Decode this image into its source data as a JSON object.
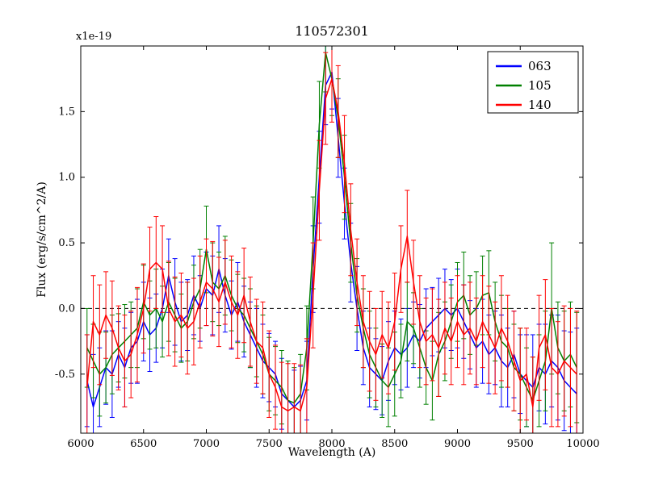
{
  "figure": {
    "title": "110572301",
    "offset_label": "x1e-19",
    "xlabel": "Wavelength (A)",
    "ylabel": "Flux (erg/s/cm^2/A)"
  },
  "chart_data": {
    "type": "line",
    "title": "110572301",
    "xlabel": "Wavelength (A)",
    "ylabel": "Flux (erg/s/cm^2/A)",
    "y_offset_label": "x1e-19",
    "xlim": [
      6000,
      10000
    ],
    "ylim": [
      -0.95,
      2.0
    ],
    "xticks": [
      6000,
      6500,
      7000,
      7500,
      8000,
      8500,
      9000,
      9500,
      10000
    ],
    "xtick_labels": [
      "6000",
      "6500",
      "7000",
      "7500",
      "8000",
      "8500",
      "9000",
      "9500",
      "10000"
    ],
    "yticks": [
      -0.5,
      0.0,
      0.5,
      1.0,
      1.5
    ],
    "ytick_labels": [
      "-0.5",
      "0.0",
      "0.5",
      "1.0",
      "1.5"
    ],
    "grid": false,
    "zero_line": {
      "y": 0.0,
      "style": "dashed",
      "color": "#000000"
    },
    "legend": {
      "position": "upper right",
      "entries": [
        {
          "label": "063",
          "color": "#0000ff"
        },
        {
          "label": "105",
          "color": "#008000"
        },
        {
          "label": "140",
          "color": "#ff0000"
        }
      ]
    },
    "x": [
      6050,
      6100,
      6150,
      6200,
      6250,
      6300,
      6350,
      6400,
      6450,
      6500,
      6550,
      6600,
      6650,
      6700,
      6750,
      6800,
      6850,
      6900,
      6950,
      7000,
      7050,
      7100,
      7150,
      7200,
      7250,
      7300,
      7350,
      7400,
      7450,
      7500,
      7550,
      7600,
      7650,
      7700,
      7750,
      7800,
      7850,
      7900,
      7950,
      8000,
      8050,
      8100,
      8150,
      8200,
      8250,
      8300,
      8350,
      8400,
      8450,
      8500,
      8550,
      8600,
      8650,
      8700,
      8750,
      8800,
      8850,
      8900,
      8950,
      9000,
      9050,
      9100,
      9150,
      9200,
      9250,
      9300,
      9350,
      9400,
      9450,
      9500,
      9550,
      9600,
      9650,
      9700,
      9750,
      9800,
      9850,
      9900,
      9950
    ],
    "series": [
      {
        "name": "063",
        "color": "#0000ff",
        "values": [
          -0.55,
          -0.75,
          -0.6,
          -0.45,
          -0.5,
          -0.35,
          -0.45,
          -0.3,
          -0.25,
          -0.1,
          -0.2,
          -0.15,
          0.0,
          0.25,
          0.05,
          -0.1,
          -0.05,
          0.1,
          0.0,
          0.15,
          0.1,
          0.3,
          0.1,
          -0.05,
          0.05,
          -0.1,
          -0.2,
          -0.3,
          -0.4,
          -0.45,
          -0.5,
          -0.65,
          -0.7,
          -0.75,
          -0.7,
          -0.55,
          0.3,
          1.0,
          1.7,
          1.8,
          1.3,
          0.8,
          0.35,
          0.0,
          -0.3,
          -0.45,
          -0.5,
          -0.55,
          -0.4,
          -0.3,
          -0.35,
          -0.3,
          -0.2,
          -0.25,
          -0.15,
          -0.1,
          -0.05,
          0.0,
          -0.05,
          0.0,
          -0.1,
          -0.2,
          -0.3,
          -0.25,
          -0.35,
          -0.3,
          -0.4,
          -0.45,
          -0.35,
          -0.5,
          -0.55,
          -0.6,
          -0.45,
          -0.5,
          -0.4,
          -0.45,
          -0.55,
          -0.6,
          -0.65
        ],
        "errors": [
          0.35,
          0.4,
          0.3,
          0.28,
          0.33,
          0.25,
          0.3,
          0.27,
          0.32,
          0.3,
          0.28,
          0.26,
          0.3,
          0.28,
          0.33,
          0.3,
          0.27,
          0.3,
          0.25,
          0.28,
          0.3,
          0.33,
          0.28,
          0.26,
          0.3,
          0.27,
          0.25,
          0.3,
          0.28,
          0.26,
          0.25,
          0.27,
          0.3,
          0.28,
          0.26,
          0.3,
          0.33,
          0.35,
          0.3,
          0.28,
          0.3,
          0.27,
          0.3,
          0.32,
          0.28,
          0.3,
          0.27,
          0.26,
          0.3,
          0.28,
          0.27,
          0.3,
          0.25,
          0.28,
          0.3,
          0.26,
          0.28,
          0.3,
          0.27,
          0.3,
          0.28,
          0.26,
          0.3,
          0.32,
          0.3,
          0.28,
          0.35,
          0.3,
          0.33,
          0.3,
          0.35,
          0.4,
          0.33,
          0.38,
          0.35,
          0.4,
          0.38,
          0.42,
          0.5
        ]
      },
      {
        "name": "105",
        "color": "#008000",
        "values": [
          -0.3,
          -0.4,
          -0.5,
          -0.45,
          -0.35,
          -0.3,
          -0.25,
          -0.2,
          -0.15,
          0.05,
          -0.05,
          0.0,
          -0.1,
          0.05,
          -0.05,
          -0.15,
          -0.1,
          0.05,
          0.15,
          0.45,
          0.2,
          0.15,
          0.25,
          0.1,
          0.0,
          -0.05,
          -0.15,
          -0.25,
          -0.35,
          -0.5,
          -0.55,
          -0.6,
          -0.7,
          -0.72,
          -0.65,
          -0.3,
          0.5,
          1.4,
          1.95,
          1.75,
          1.45,
          1.0,
          0.5,
          0.1,
          -0.15,
          -0.35,
          -0.45,
          -0.55,
          -0.6,
          -0.5,
          -0.4,
          -0.1,
          -0.15,
          -0.3,
          -0.45,
          -0.55,
          -0.35,
          -0.25,
          -0.1,
          0.05,
          0.1,
          -0.05,
          0.0,
          0.1,
          0.12,
          -0.1,
          -0.25,
          -0.3,
          -0.45,
          -0.5,
          -0.6,
          -0.7,
          -0.55,
          -0.4,
          0.0,
          -0.3,
          -0.4,
          -0.35,
          -0.45
        ],
        "errors": [
          0.3,
          0.28,
          0.32,
          0.27,
          0.3,
          0.26,
          0.28,
          0.25,
          0.3,
          0.28,
          0.26,
          0.3,
          0.27,
          0.3,
          0.28,
          0.26,
          0.3,
          0.28,
          0.3,
          0.33,
          0.3,
          0.28,
          0.3,
          0.27,
          0.26,
          0.28,
          0.3,
          0.27,
          0.3,
          0.28,
          0.26,
          0.28,
          0.3,
          0.27,
          0.3,
          0.32,
          0.35,
          0.33,
          0.3,
          0.28,
          0.3,
          0.32,
          0.3,
          0.28,
          0.3,
          0.33,
          0.3,
          0.28,
          0.3,
          0.32,
          0.28,
          0.3,
          0.27,
          0.3,
          0.28,
          0.3,
          0.32,
          0.3,
          0.28,
          0.3,
          0.33,
          0.3,
          0.28,
          0.3,
          0.32,
          0.3,
          0.35,
          0.3,
          0.33,
          0.35,
          0.3,
          0.33,
          0.35,
          0.38,
          0.5,
          0.35,
          0.38,
          0.4,
          0.42
        ]
      },
      {
        "name": "140",
        "color": "#ff0000",
        "values": [
          -0.6,
          -0.1,
          -0.2,
          -0.05,
          -0.15,
          -0.3,
          -0.4,
          -0.35,
          -0.2,
          0.0,
          0.3,
          0.35,
          0.3,
          0.0,
          -0.1,
          -0.05,
          -0.15,
          -0.1,
          0.05,
          0.2,
          0.15,
          0.05,
          0.2,
          0.05,
          -0.05,
          0.1,
          -0.1,
          -0.25,
          -0.3,
          -0.5,
          -0.6,
          -0.75,
          -0.78,
          -0.75,
          -0.78,
          -0.6,
          0.1,
          0.9,
          1.6,
          1.75,
          1.5,
          1.1,
          0.6,
          0.2,
          -0.1,
          -0.25,
          -0.35,
          -0.2,
          -0.3,
          -0.1,
          0.3,
          0.55,
          0.2,
          -0.1,
          -0.25,
          -0.2,
          -0.3,
          -0.15,
          -0.25,
          -0.1,
          -0.2,
          -0.15,
          -0.25,
          -0.1,
          -0.2,
          -0.3,
          -0.15,
          -0.25,
          -0.4,
          -0.55,
          -0.5,
          -0.75,
          -0.3,
          -0.2,
          -0.45,
          -0.5,
          -0.4,
          -0.45,
          -0.5
        ],
        "errors": [
          0.4,
          0.35,
          0.38,
          0.33,
          0.36,
          0.32,
          0.35,
          0.33,
          0.36,
          0.34,
          0.32,
          0.35,
          0.33,
          0.36,
          0.34,
          0.32,
          0.35,
          0.33,
          0.35,
          0.33,
          0.36,
          0.34,
          0.32,
          0.35,
          0.33,
          0.36,
          0.34,
          0.32,
          0.35,
          0.33,
          0.32,
          0.34,
          0.36,
          0.33,
          0.35,
          0.37,
          0.4,
          0.38,
          0.35,
          0.33,
          0.35,
          0.37,
          0.35,
          0.33,
          0.35,
          0.38,
          0.35,
          0.33,
          0.35,
          0.37,
          0.33,
          0.35,
          0.32,
          0.35,
          0.33,
          0.35,
          0.37,
          0.35,
          0.33,
          0.35,
          0.38,
          0.35,
          0.33,
          0.35,
          0.37,
          0.35,
          0.4,
          0.35,
          0.38,
          0.4,
          0.35,
          0.38,
          0.4,
          0.42,
          0.45,
          0.4,
          0.42,
          0.45,
          0.48
        ]
      }
    ]
  }
}
